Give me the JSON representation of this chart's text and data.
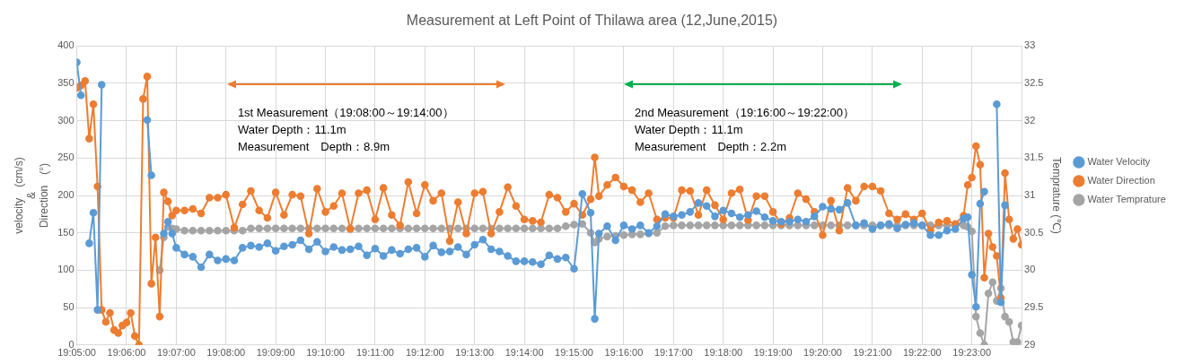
{
  "chart_data": {
    "type": "line",
    "title": "Measurement at Left Point of Thilawa area (12,June,2015)",
    "ylabel": "velocity　(cm/s)\n&\nDirection　(°)",
    "y2label": "Temprature (℃)",
    "x": [
      19.08333,
      19.08472,
      19.08611,
      19.0875,
      19.08889,
      19.09028,
      19.09167,
      19.09306,
      19.09444,
      19.09583,
      19.09722,
      19.09861,
      19.1,
      19.10139,
      19.10278,
      19.10417,
      19.10556,
      19.10694,
      19.10833,
      19.10972,
      19.11111,
      19.1125,
      19.11389,
      19.11528,
      19.11667,
      19.11944,
      19.12222,
      19.125,
      19.12778,
      19.13056,
      19.13333,
      19.13611,
      19.13889,
      19.14167,
      19.14444,
      19.14722,
      19.15,
      19.15278,
      19.15556,
      19.15833,
      19.16111,
      19.16389,
      19.16667,
      19.16944,
      19.17222,
      19.175,
      19.17778,
      19.18056,
      19.18333,
      19.18611,
      19.18889,
      19.19167,
      19.19444,
      19.19722,
      19.2,
      19.20278,
      19.20556,
      19.20833,
      19.21111,
      19.21389,
      19.21667,
      19.21944,
      19.22222,
      19.225,
      19.22778,
      19.23056,
      19.23333,
      19.23611,
      19.23889,
      19.24167,
      19.24444,
      19.24722,
      19.25,
      19.25278,
      19.25556,
      19.25694,
      19.25833,
      19.26111,
      19.26389,
      19.26667,
      19.26944,
      19.27222,
      19.275,
      19.27778,
      19.28056,
      19.28333,
      19.28611,
      19.28889,
      19.29167,
      19.29444,
      19.29722,
      19.3,
      19.30278,
      19.30556,
      19.30833,
      19.31111,
      19.31389,
      19.31667,
      19.31944,
      19.32222,
      19.325,
      19.32778,
      19.33056,
      19.33333,
      19.33611,
      19.33889,
      19.34167,
      19.34444,
      19.34722,
      19.35,
      19.35278,
      19.35556,
      19.35833,
      19.36111,
      19.36389,
      19.36667,
      19.36944,
      19.37222,
      19.375,
      19.37778,
      19.38056,
      19.38194,
      19.38333,
      19.38472,
      19.38611,
      19.3875,
      19.38889,
      19.39028,
      19.39167,
      19.39306,
      19.39444,
      19.39583,
      19.39722,
      19.39861,
      19.4
    ],
    "series": [
      {
        "name": "Water Velocity",
        "color": "#5b9bd5",
        "values": [
          378,
          334,
          null,
          136,
          177,
          47,
          348,
          null,
          null,
          null,
          null,
          null,
          null,
          null,
          null,
          null,
          null,
          301,
          227,
          null,
          null,
          149,
          165,
          149,
          130,
          121,
          118,
          104,
          121,
          113,
          115,
          113,
          130,
          133,
          131,
          136,
          126,
          132,
          134,
          140,
          128,
          138,
          125,
          131,
          127,
          128,
          132,
          120,
          129,
          119,
          127,
          122,
          128,
          130,
          118,
          133,
          124,
          125,
          131,
          121,
          134,
          141,
          128,
          125,
          119,
          112,
          112,
          111,
          108,
          120,
          115,
          117,
          102,
          202,
          177,
          35,
          149,
          159,
          140,
          160,
          155,
          160,
          150,
          159,
          175,
          172,
          174,
          178,
          190,
          186,
          172,
          180,
          176,
          171,
          174,
          179,
          171,
          166,
          165,
          165,
          168,
          165,
          172,
          185,
          182,
          181,
          190,
          160,
          163,
          155,
          160,
          162,
          156,
          161,
          163,
          160,
          147,
          147,
          153,
          155,
          169,
          171,
          94,
          51,
          189,
          205,
          null,
          null,
          322,
          57,
          187,
          null,
          null,
          null,
          null
        ]
      },
      {
        "name": "Water Direction",
        "color": "#ed7d31",
        "values": [
          344,
          347,
          353,
          276,
          322,
          212,
          47,
          31,
          43,
          20,
          16,
          26,
          30,
          43,
          12,
          0,
          329,
          359,
          82,
          144,
          38,
          204,
          192,
          173,
          180,
          180,
          182,
          176,
          197,
          197,
          201,
          157,
          188,
          206,
          180,
          170,
          204,
          174,
          201,
          199,
          149,
          209,
          178,
          186,
          203,
          155,
          203,
          207,
          168,
          210,
          174,
          160,
          218,
          176,
          214,
          193,
          203,
          139,
          191,
          149,
          203,
          205,
          149,
          178,
          211,
          186,
          168,
          166,
          164,
          201,
          197,
          178,
          189,
          174,
          195,
          251,
          199,
          214,
          224,
          212,
          207,
          191,
          203,
          168,
          170,
          170,
          207,
          206,
          174,
          207,
          187,
          168,
          203,
          208,
          167,
          199,
          199,
          178,
          162,
          170,
          203,
          195,
          178,
          147,
          193,
          153,
          210,
          193,
          212,
          212,
          206,
          176,
          168,
          175,
          168,
          176,
          153,
          164,
          166,
          162,
          173,
          214,
          224,
          266,
          241,
          90,
          149,
          131,
          119,
          63,
          230,
          168,
          142,
          155,
          134
        ]
      },
      {
        "name": "Water Temprature",
        "color": "#a5a5a5",
        "axis": "y2",
        "values": [
          null,
          null,
          null,
          null,
          null,
          null,
          null,
          null,
          null,
          null,
          null,
          null,
          null,
          null,
          null,
          null,
          null,
          null,
          null,
          null,
          30.0,
          30.44,
          30.58,
          30.56,
          30.55,
          30.53,
          30.53,
          30.53,
          30.53,
          30.53,
          30.53,
          30.53,
          30.53,
          30.56,
          30.56,
          30.56,
          30.56,
          30.56,
          30.56,
          30.56,
          30.56,
          30.56,
          30.56,
          30.56,
          30.56,
          30.56,
          30.56,
          30.56,
          30.56,
          30.56,
          30.56,
          30.56,
          30.56,
          30.56,
          30.56,
          30.56,
          30.56,
          30.56,
          30.56,
          30.56,
          30.56,
          30.56,
          30.56,
          30.56,
          30.56,
          30.56,
          30.56,
          30.56,
          30.56,
          30.56,
          30.56,
          30.59,
          30.61,
          30.62,
          30.5,
          30.37,
          30.42,
          30.45,
          30.46,
          30.47,
          30.48,
          30.48,
          30.49,
          30.5,
          30.59,
          30.6,
          30.6,
          30.6,
          30.6,
          30.6,
          30.6,
          30.6,
          30.6,
          30.6,
          30.6,
          30.6,
          30.6,
          30.6,
          30.6,
          30.6,
          30.6,
          30.6,
          30.6,
          30.6,
          30.6,
          30.6,
          30.6,
          30.6,
          30.6,
          30.6,
          30.6,
          30.6,
          30.6,
          30.6,
          30.6,
          30.6,
          30.6,
          30.6,
          30.6,
          30.6,
          30.6,
          30.58,
          30.52,
          29.38,
          29.16,
          29.0,
          29.69,
          29.84,
          29.59,
          29.76,
          29.38,
          29.31,
          29.04,
          29.04,
          29.26
        ]
      }
    ],
    "xlim": [
      19.08333,
      19.4
    ],
    "xticks": [
      {
        "value": 19.08333,
        "label": "19:05:00"
      },
      {
        "value": 19.1,
        "label": "19:06:00"
      },
      {
        "value": 19.11667,
        "label": "19:07:00"
      },
      {
        "value": 19.13333,
        "label": "19:08:00"
      },
      {
        "value": 19.15,
        "label": "19:09:00"
      },
      {
        "value": 19.16667,
        "label": "19:10:00"
      },
      {
        "value": 19.18333,
        "label": "19:11:00"
      },
      {
        "value": 19.2,
        "label": "19:12:00"
      },
      {
        "value": 19.21667,
        "label": "19:13:00"
      },
      {
        "value": 19.23333,
        "label": "19:14:00"
      },
      {
        "value": 19.25,
        "label": "19:15:00"
      },
      {
        "value": 19.26667,
        "label": "19:16:00"
      },
      {
        "value": 19.28333,
        "label": "19:17:00"
      },
      {
        "value": 19.3,
        "label": "19:18:00"
      },
      {
        "value": 19.31667,
        "label": "19:19:00"
      },
      {
        "value": 19.33333,
        "label": "19:20:00"
      },
      {
        "value": 19.35,
        "label": "19:21:00"
      },
      {
        "value": 19.36667,
        "label": "19:22:00"
      },
      {
        "value": 19.38333,
        "label": "19:23:00"
      }
    ],
    "ylim": [
      0,
      400
    ],
    "yticks": [
      0,
      50,
      100,
      150,
      200,
      250,
      300,
      350,
      400
    ],
    "y2lim": [
      29,
      33
    ],
    "y2ticks": [
      29,
      29.5,
      30,
      30.5,
      31,
      31.5,
      32,
      32.5,
      33
    ],
    "annotations": [
      "1st Measurement（19:08:00～19:14:00）\nWater Depth：11.1m\nMeasurement　Depth：8.9m",
      "2nd Measurement（19:16:00～19:22:00）\nWater Depth：11.1m\nMeasurement　Depth：2.2m"
    ],
    "grid": true,
    "legend": "right",
    "marker": "circle"
  }
}
